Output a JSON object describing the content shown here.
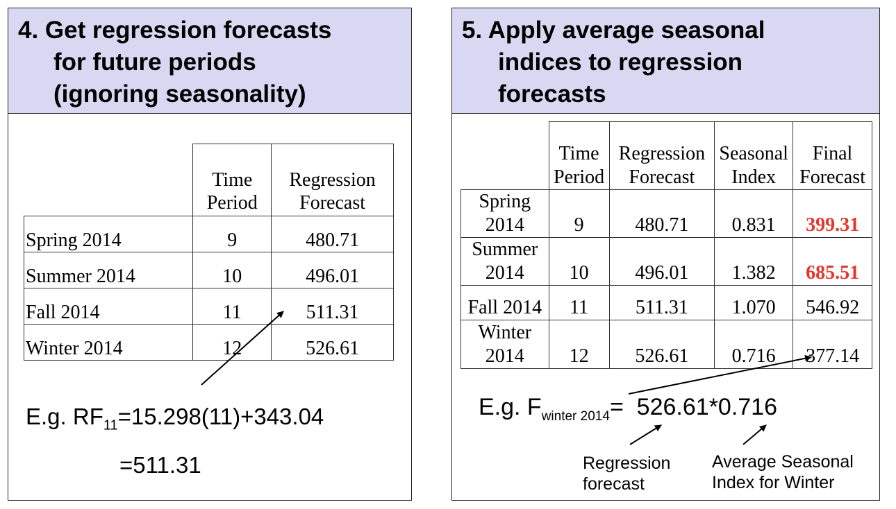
{
  "left": {
    "header": [
      "4. Get regression forecasts",
      "for future periods",
      "(ignoring seasonality)"
    ],
    "columns": [
      "Time Period",
      "Regression Forecast"
    ],
    "column_lines": [
      [
        "Time",
        "Period"
      ],
      [
        "Regression",
        "Forecast"
      ]
    ],
    "rows": [
      {
        "label": "Spring 2014",
        "period": "9",
        "forecast": "480.71"
      },
      {
        "label": "Summer 2014",
        "period": "10",
        "forecast": "496.01"
      },
      {
        "label": "Fall 2014",
        "period": "11",
        "forecast": "511.31"
      },
      {
        "label": "Winter 2014",
        "period": "12",
        "forecast": "526.61"
      }
    ],
    "example": {
      "prefix": "E.g. RF",
      "subscript": "11",
      "expr": "=15.298(11)+343.04",
      "result": "=511.31"
    }
  },
  "right": {
    "header": [
      "5. Apply average seasonal",
      "indices to regression",
      "forecasts"
    ],
    "column_lines": [
      [
        "Time",
        "Period"
      ],
      [
        "Regression",
        "Forecast"
      ],
      [
        "Seasonal",
        "Index"
      ],
      [
        "Final",
        "Forecast"
      ]
    ],
    "rows": [
      {
        "label_lines": [
          "Spring",
          "2014"
        ],
        "period": "9",
        "forecast": "480.71",
        "index": "0.831",
        "final": "399.31",
        "highlight": true
      },
      {
        "label_lines": [
          "Summer",
          "2014"
        ],
        "period": "10",
        "forecast": "496.01",
        "index": "1.382",
        "final": "685.51",
        "highlight": true
      },
      {
        "label_lines": [
          "Fall 2014"
        ],
        "period": "11",
        "forecast": "511.31",
        "index": "1.070",
        "final": "546.92",
        "highlight": false
      },
      {
        "label_lines": [
          "Winter",
          "2014"
        ],
        "period": "12",
        "forecast": "526.61",
        "index": "0.716",
        "final": "377.14",
        "highlight": false
      }
    ],
    "example": {
      "prefix": "E.g. F",
      "subscript": "winter 2014",
      "expr": "=  526.61*0.716"
    },
    "annotations": {
      "regression": [
        "Regression",
        "forecast"
      ],
      "seasonal": [
        "Average Seasonal",
        "Index for Winter"
      ]
    }
  },
  "colors": {
    "header_bg": "#d8d8f2",
    "highlight": "#e8352c",
    "border": "#222222"
  }
}
